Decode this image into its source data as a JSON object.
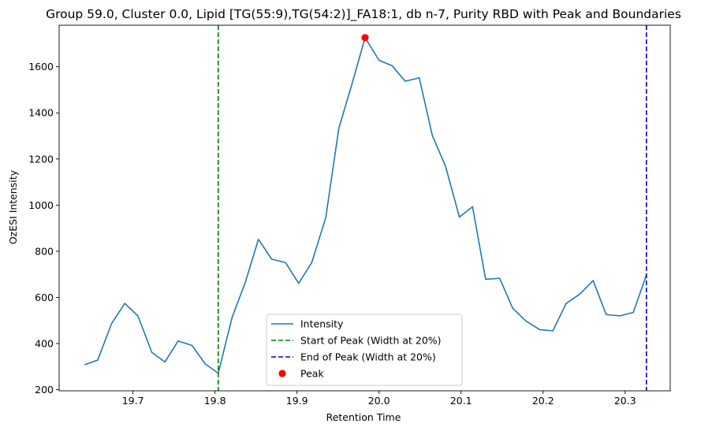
{
  "chart_data": {
    "type": "line",
    "title": "Group 59.0, Cluster 0.0, Lipid [TG(55:9),TG(54:2)]_FA18:1, db n-7, Purity RBD with Peak and Boundaries",
    "xlabel": "Retention Time",
    "ylabel": "OzESI Intensity",
    "xlim": [
      19.61,
      20.355
    ],
    "ylim": [
      195,
      1780
    ],
    "xticks": [
      19.7,
      19.8,
      19.9,
      20.0,
      20.1,
      20.2,
      20.3
    ],
    "xtick_labels": [
      "19.7",
      "19.8",
      "19.9",
      "20.0",
      "20.1",
      "20.2",
      "20.3"
    ],
    "yticks": [
      200,
      400,
      600,
      800,
      1000,
      1200,
      1400,
      1600
    ],
    "ytick_labels": [
      "200",
      "400",
      "600",
      "800",
      "1000",
      "1200",
      "1400",
      "1600"
    ],
    "grid": false,
    "legend_position": "lower-center",
    "series": [
      {
        "name": "Intensity",
        "color": "#1f77b4",
        "x": [
          19.641,
          19.657,
          19.674,
          19.69,
          19.706,
          19.723,
          19.739,
          19.755,
          19.772,
          19.788,
          19.804,
          19.821,
          19.837,
          19.853,
          19.869,
          19.886,
          19.902,
          19.918,
          19.935,
          19.951,
          19.967,
          19.983,
          20.0,
          20.016,
          20.032,
          20.049,
          20.065,
          20.081,
          20.098,
          20.114,
          20.13,
          20.147,
          20.163,
          20.179,
          20.196,
          20.212,
          20.228,
          20.245,
          20.261,
          20.277,
          20.294,
          20.31,
          20.326
        ],
        "y": [
          308,
          328,
          487,
          574,
          520,
          362,
          320,
          411,
          392,
          312,
          271,
          515,
          665,
          852,
          766,
          751,
          661,
          751,
          945,
          1333,
          1525,
          1726,
          1628,
          1604,
          1537,
          1552,
          1302,
          1169,
          948,
          993,
          678,
          683,
          553,
          498,
          460,
          455,
          573,
          615,
          673,
          525,
          520,
          535,
          697
        ]
      }
    ],
    "vlines": [
      {
        "name": "Start of Peak (Width at 20%)",
        "x": 19.804,
        "color": "#008000",
        "style": "dashed"
      },
      {
        "name": "End of Peak (Width at 20%)",
        "x": 20.326,
        "color": "#0000cc",
        "style": "dashed"
      }
    ],
    "peak": {
      "name": "Peak",
      "x": 19.983,
      "y": 1726,
      "color": "#ff0000"
    },
    "legend": [
      {
        "label": "Intensity",
        "kind": "line",
        "color": "#1f77b4"
      },
      {
        "label": "Start of Peak (Width at 20%)",
        "kind": "dashed",
        "color": "#008000"
      },
      {
        "label": "End of Peak (Width at 20%)",
        "kind": "dashed",
        "color": "#0000cc"
      },
      {
        "label": "Peak",
        "kind": "dot",
        "color": "#ff0000"
      }
    ]
  }
}
